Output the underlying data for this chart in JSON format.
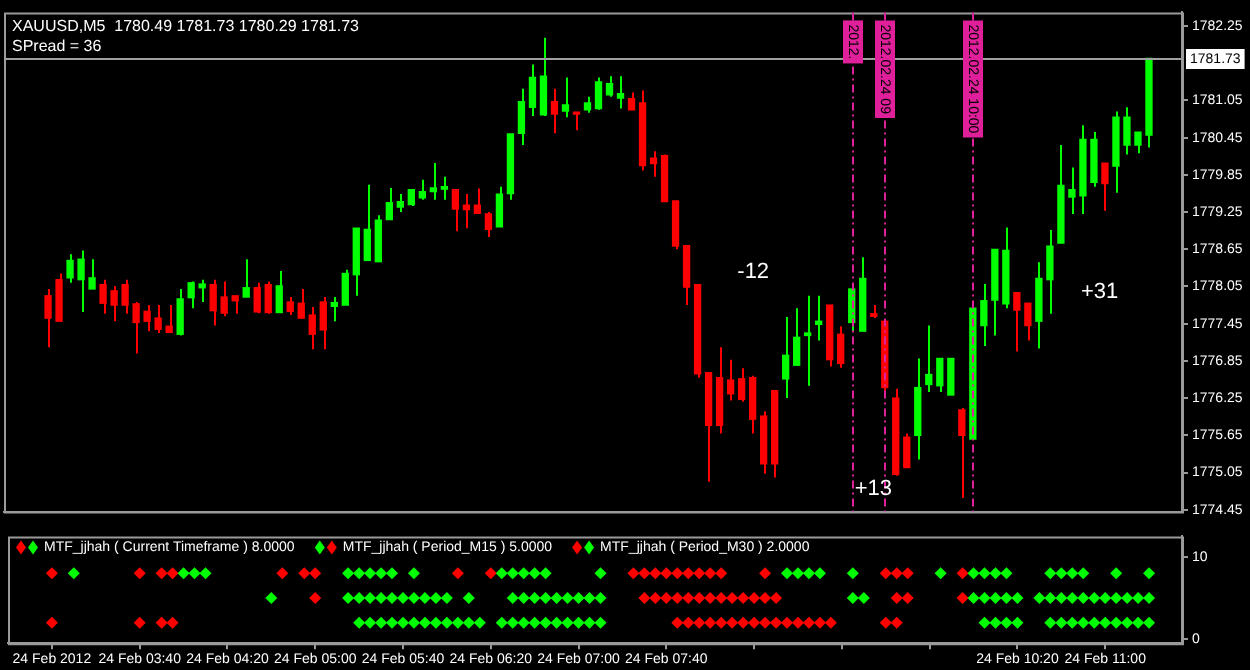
{
  "chart_data": [
    {
      "type": "candlestick",
      "title": "XAUUSD,M5  1780.49 1781.73 1780.29 1781.73",
      "subtitle": "SPread = 36",
      "x": [
        "2012-02-24T03:00",
        "2012-02-24T03:05",
        "2012-02-24T03:10",
        "2012-02-24T03:15",
        "2012-02-24T03:20",
        "2012-02-24T03:25",
        "2012-02-24T03:30",
        "2012-02-24T03:35",
        "2012-02-24T03:40",
        "2012-02-24T03:45",
        "2012-02-24T03:50",
        "2012-02-24T03:55",
        "2012-02-24T04:00",
        "2012-02-24T04:05",
        "2012-02-24T04:10",
        "2012-02-24T04:15",
        "2012-02-24T04:20",
        "2012-02-24T04:25",
        "2012-02-24T04:30",
        "2012-02-24T04:35",
        "2012-02-24T04:40",
        "2012-02-24T04:45",
        "2012-02-24T04:50",
        "2012-02-24T04:55",
        "2012-02-24T05:00",
        "2012-02-24T05:05",
        "2012-02-24T05:10",
        "2012-02-24T05:15",
        "2012-02-24T05:20",
        "2012-02-24T05:25",
        "2012-02-24T05:30",
        "2012-02-24T05:35",
        "2012-02-24T05:40",
        "2012-02-24T05:45",
        "2012-02-24T05:50",
        "2012-02-24T05:55",
        "2012-02-24T06:00",
        "2012-02-24T06:05",
        "2012-02-24T06:10",
        "2012-02-24T06:15",
        "2012-02-24T06:20",
        "2012-02-24T06:25",
        "2012-02-24T06:30",
        "2012-02-24T06:35",
        "2012-02-24T06:40",
        "2012-02-24T06:45",
        "2012-02-24T06:50",
        "2012-02-24T06:55",
        "2012-02-24T07:00",
        "2012-02-24T07:05",
        "2012-02-24T07:10",
        "2012-02-24T07:15",
        "2012-02-24T07:20",
        "2012-02-24T07:25",
        "2012-02-24T07:30",
        "2012-02-24T07:35",
        "2012-02-24T07:40",
        "2012-02-24T07:45",
        "2012-02-24T07:50",
        "2012-02-24T07:55",
        "2012-02-24T08:00",
        "2012-02-24T08:05",
        "2012-02-24T08:10",
        "2012-02-24T08:15",
        "2012-02-24T08:20",
        "2012-02-24T08:25",
        "2012-02-24T08:30",
        "2012-02-24T08:35",
        "2012-02-24T08:40",
        "2012-02-24T08:45",
        "2012-02-24T08:50",
        "2012-02-24T08:55",
        "2012-02-24T09:00",
        "2012-02-24T09:05",
        "2012-02-24T09:10",
        "2012-02-24T09:15",
        "2012-02-24T09:20",
        "2012-02-24T09:25",
        "2012-02-24T09:30",
        "2012-02-24T09:35",
        "2012-02-24T09:40",
        "2012-02-24T09:45",
        "2012-02-24T09:50",
        "2012-02-24T09:55",
        "2012-02-24T10:00",
        "2012-02-24T10:05",
        "2012-02-24T10:10",
        "2012-02-24T10:15",
        "2012-02-24T10:20",
        "2012-02-24T10:25",
        "2012-02-24T10:30",
        "2012-02-24T10:35",
        "2012-02-24T10:40",
        "2012-02-24T10:45",
        "2012-02-24T10:50",
        "2012-02-24T10:55",
        "2012-02-24T11:00",
        "2012-02-24T11:05",
        "2012-02-24T11:10",
        "2012-02-24T11:15",
        "2012-02-24T11:20"
      ],
      "ohlc": [
        [
          1777.9,
          1778.01,
          1777.07,
          1777.54
        ],
        [
          1778.16,
          1778.26,
          1777.49,
          1777.49
        ],
        [
          1778.19,
          1778.57,
          1778.11,
          1778.47
        ],
        [
          1778.16,
          1778.63,
          1777.64,
          1778.49
        ],
        [
          1778.01,
          1778.49,
          1778.01,
          1778.19
        ],
        [
          1778.08,
          1778.16,
          1777.61,
          1777.78
        ],
        [
          1777.98,
          1778.06,
          1777.49,
          1777.75
        ],
        [
          1778.08,
          1778.16,
          1777.61,
          1777.75
        ],
        [
          1777.77,
          1777.8,
          1776.97,
          1777.47
        ],
        [
          1777.65,
          1777.75,
          1777.33,
          1777.49
        ],
        [
          1777.54,
          1777.75,
          1777.3,
          1777.36
        ],
        [
          1777.41,
          1777.75,
          1777.31,
          1777.31
        ],
        [
          1777.28,
          1778.01,
          1777.26,
          1777.85
        ],
        [
          1777.87,
          1778.13,
          1777.7,
          1778.11
        ],
        [
          1778.03,
          1778.16,
          1777.8,
          1778.09
        ],
        [
          1778.08,
          1778.16,
          1777.42,
          1777.66
        ],
        [
          1777.88,
          1778.13,
          1777.57,
          1777.62
        ],
        [
          1777.9,
          1777.9,
          1777.61,
          1777.82
        ],
        [
          1777.88,
          1778.49,
          1777.88,
          1778.03
        ],
        [
          1778.03,
          1778.11,
          1777.62,
          1777.64
        ],
        [
          1778.08,
          1778.13,
          1777.61,
          1777.63
        ],
        [
          1777.63,
          1778.3,
          1777.63,
          1778.06
        ],
        [
          1777.8,
          1777.88,
          1777.59,
          1777.65
        ],
        [
          1777.78,
          1778.01,
          1777.54,
          1777.54
        ],
        [
          1777.59,
          1777.72,
          1777.04,
          1777.28
        ],
        [
          1777.8,
          1777.88,
          1777.04,
          1777.35
        ],
        [
          1777.73,
          1777.88,
          1777.49,
          1777.79
        ],
        [
          1777.75,
          1778.32,
          1777.75,
          1778.26
        ],
        [
          1778.24,
          1778.99,
          1777.9,
          1778.99
        ],
        [
          1778.47,
          1779.69,
          1778.47,
          1778.97
        ],
        [
          1778.45,
          1779.2,
          1778.45,
          1779.12
        ],
        [
          1779.13,
          1779.64,
          1779.13,
          1779.4
        ],
        [
          1779.33,
          1779.54,
          1779.25,
          1779.42
        ],
        [
          1779.37,
          1779.61,
          1779.35,
          1779.61
        ],
        [
          1779.48,
          1779.77,
          1779.45,
          1779.58
        ],
        [
          1779.58,
          1780.04,
          1779.45,
          1779.64
        ],
        [
          1779.62,
          1779.82,
          1779.45,
          1779.66
        ],
        [
          1779.61,
          1779.61,
          1778.94,
          1779.3
        ],
        [
          1779.36,
          1779.54,
          1778.99,
          1779.29
        ],
        [
          1779.36,
          1779.63,
          1779.23,
          1779.23
        ],
        [
          1779.22,
          1779.25,
          1778.85,
          1778.97
        ],
        [
          1779.01,
          1779.66,
          1779.01,
          1779.54
        ],
        [
          1779.55,
          1780.51,
          1779.45,
          1780.51
        ],
        [
          1780.52,
          1781.24,
          1780.33,
          1781.03
        ],
        [
          1780.94,
          1781.63,
          1780.8,
          1781.42
        ],
        [
          1780.82,
          1782.06,
          1780.8,
          1781.44
        ],
        [
          1781.03,
          1781.24,
          1780.52,
          1780.83
        ],
        [
          1780.88,
          1781.42,
          1780.78,
          1780.98
        ],
        [
          1780.85,
          1780.85,
          1780.57,
          1780.83
        ],
        [
          1780.9,
          1781.11,
          1780.85,
          1781.01
        ],
        [
          1780.92,
          1781.42,
          1780.9,
          1781.35
        ],
        [
          1781.14,
          1781.44,
          1781.11,
          1781.32
        ],
        [
          1781.09,
          1781.44,
          1780.92,
          1781.16
        ],
        [
          1781.08,
          1781.18,
          1780.9,
          1780.9
        ],
        [
          1781.01,
          1781.21,
          1779.92,
          1780.0
        ],
        [
          1780.12,
          1780.23,
          1779.82,
          1780.03
        ],
        [
          1780.16,
          1780.18,
          1779.42,
          1779.42
        ],
        [
          1779.43,
          1779.43,
          1778.65,
          1778.7
        ],
        [
          1778.71,
          1778.71,
          1777.75,
          1778.04
        ],
        [
          1778.08,
          1778.08,
          1776.58,
          1776.64
        ],
        [
          1776.66,
          1776.66,
          1774.9,
          1775.81
        ],
        [
          1776.58,
          1777.07,
          1775.68,
          1775.81
        ],
        [
          1776.54,
          1776.87,
          1776.21,
          1776.32
        ],
        [
          1776.56,
          1776.73,
          1776.19,
          1776.23
        ],
        [
          1776.58,
          1776.61,
          1775.68,
          1775.91
        ],
        [
          1775.96,
          1776.04,
          1775.03,
          1775.19
        ],
        [
          1776.37,
          1776.37,
          1774.97,
          1775.19
        ],
        [
          1776.56,
          1777.56,
          1776.25,
          1776.94
        ],
        [
          1776.78,
          1777.7,
          1776.78,
          1777.23
        ],
        [
          1777.26,
          1777.9,
          1776.45,
          1777.3
        ],
        [
          1777.44,
          1777.9,
          1777.18,
          1777.49
        ],
        [
          1777.75,
          1777.75,
          1776.76,
          1776.87
        ],
        [
          1777.28,
          1777.41,
          1776.74,
          1776.81
        ],
        [
          1777.47,
          1778.01,
          1777.33,
          1778.01
        ],
        [
          1777.33,
          1778.52,
          1777.33,
          1778.18
        ],
        [
          1777.61,
          1777.75,
          1777.54,
          1777.57
        ],
        [
          1777.49,
          1777.49,
          1776.35,
          1776.42
        ],
        [
          1776.25,
          1776.4,
          1775.0,
          1775.02
        ],
        [
          1775.62,
          1775.68,
          1775.13,
          1775.13
        ],
        [
          1775.65,
          1776.89,
          1775.26,
          1776.42
        ],
        [
          1776.47,
          1777.42,
          1776.35,
          1776.63
        ],
        [
          1776.45,
          1776.89,
          1776.35,
          1776.89
        ],
        [
          1776.3,
          1776.89,
          1776.3,
          1776.89
        ],
        [
          1776.06,
          1776.09,
          1774.64,
          1775.65
        ],
        [
          1775.59,
          1777.8,
          1775.59,
          1777.7
        ],
        [
          1777.42,
          1778.09,
          1777.09,
          1777.82
        ],
        [
          1777.83,
          1778.65,
          1777.26,
          1778.65
        ],
        [
          1777.77,
          1779.0,
          1777.7,
          1778.63
        ],
        [
          1777.95,
          1777.95,
          1777.0,
          1777.67
        ],
        [
          1777.78,
          1777.78,
          1777.18,
          1777.42
        ],
        [
          1777.49,
          1778.44,
          1777.05,
          1778.18
        ],
        [
          1778.16,
          1778.96,
          1777.61,
          1778.7
        ],
        [
          1778.75,
          1780.33,
          1778.75,
          1779.68
        ],
        [
          1779.49,
          1779.97,
          1779.22,
          1779.61
        ],
        [
          1779.51,
          1780.65,
          1779.22,
          1780.42
        ],
        [
          1779.73,
          1780.54,
          1779.66,
          1780.42
        ],
        [
          1780.04,
          1780.04,
          1779.27,
          1779.71
        ],
        [
          1779.99,
          1780.87,
          1779.56,
          1780.78
        ],
        [
          1780.33,
          1780.94,
          1780.18,
          1780.78
        ],
        [
          1780.33,
          1780.54,
          1780.2,
          1780.54
        ],
        [
          1780.49,
          1781.73,
          1780.29,
          1781.73
        ]
      ],
      "colors": [
        "#ff0000",
        "#ff0000",
        "#00ff00",
        "#00ff00",
        "#00ff00",
        "#ff0000",
        "#ff0000",
        "#ff0000",
        "#ff0000",
        "#ff0000",
        "#ff0000",
        "#ff0000",
        "#00ff00",
        "#00ff00",
        "#00ff00",
        "#ff0000",
        "#ff0000",
        "#ff0000",
        "#00ff00",
        "#ff0000",
        "#ff0000",
        "#00ff00",
        "#ff0000",
        "#ff0000",
        "#ff0000",
        "#ff0000",
        "#00ff00",
        "#00ff00",
        "#00ff00",
        "#00ff00",
        "#00ff00",
        "#00ff00",
        "#00ff00",
        "#00ff00",
        "#00ff00",
        "#00ff00",
        "#00ff00",
        "#ff0000",
        "#ff0000",
        "#ff0000",
        "#ff0000",
        "#00ff00",
        "#00ff00",
        "#00ff00",
        "#00ff00",
        "#00ff00",
        "#ff0000",
        "#00ff00",
        "#ff0000",
        "#00ff00",
        "#00ff00",
        "#00ff00",
        "#00ff00",
        "#ff0000",
        "#ff0000",
        "#ff0000",
        "#ff0000",
        "#ff0000",
        "#ff0000",
        "#ff0000",
        "#ff0000",
        "#ff0000",
        "#ff0000",
        "#ff0000",
        "#ff0000",
        "#ff0000",
        "#ff0000",
        "#00ff00",
        "#00ff00",
        "#00ff00",
        "#00ff00",
        "#ff0000",
        "#ff0000",
        "#00ff00",
        "#00ff00",
        "#ff0000",
        "#ff0000",
        "#ff0000",
        "#ff0000",
        "#00ff00",
        "#00ff00",
        "#00ff00",
        "#00ff00",
        "#ff0000",
        "#00ff00",
        "#00ff00",
        "#00ff00",
        "#00ff00",
        "#ff0000",
        "#ff0000",
        "#00ff00",
        "#00ff00",
        "#00ff00",
        "#00ff00",
        "#00ff00",
        "#00ff00",
        "#ff0000",
        "#00ff00",
        "#00ff00",
        "#00ff00",
        "#00ff00"
      ],
      "xlim": [
        "2012-02-24T02:40",
        "2012-02-24T11:35"
      ],
      "ylim": [
        1774.42,
        1782.47
      ],
      "yticks": [
        1774.45,
        1775.05,
        1775.65,
        1776.25,
        1776.85,
        1777.45,
        1778.05,
        1778.65,
        1779.25,
        1779.85,
        1780.45,
        1781.05,
        1782.25
      ],
      "tick_labels": "y",
      "ref_lines": [
        {
          "axis": "y",
          "value": 1781.73,
          "label": "1781.73",
          "color": "#a0a0a0",
          "line_style": "solid"
        },
        {
          "axis": "x",
          "value": "2012-02-24T09:05",
          "label": "2012.",
          "color": "#e0209a",
          "line_style": "dashed"
        },
        {
          "axis": "x",
          "value": "2012-02-24T09:20",
          "label": "2012.02.24 09",
          "color": "#e0209a",
          "line_style": "dashed"
        },
        {
          "axis": "x",
          "value": "2012-02-24T10:00",
          "label": "2012.02.24 10:00",
          "color": "#e0209a",
          "line_style": "dashed"
        }
      ],
      "annotations": [
        "-12",
        "+13",
        "+31"
      ]
    },
    {
      "type": "scatter",
      "marker": "diamond",
      "legend": "top left",
      "x": [
        "2012-02-24T03:00",
        "2012-02-24T03:05",
        "2012-02-24T03:10",
        "2012-02-24T03:15",
        "2012-02-24T03:20",
        "2012-02-24T03:25",
        "2012-02-24T03:30",
        "2012-02-24T03:35",
        "2012-02-24T03:40",
        "2012-02-24T03:45",
        "2012-02-24T03:50",
        "2012-02-24T03:55",
        "2012-02-24T04:00",
        "2012-02-24T04:05",
        "2012-02-24T04:10",
        "2012-02-24T04:15",
        "2012-02-24T04:20",
        "2012-02-24T04:25",
        "2012-02-24T04:30",
        "2012-02-24T04:35",
        "2012-02-24T04:40",
        "2012-02-24T04:45",
        "2012-02-24T04:50",
        "2012-02-24T04:55",
        "2012-02-24T05:00",
        "2012-02-24T05:05",
        "2012-02-24T05:10",
        "2012-02-24T05:15",
        "2012-02-24T05:20",
        "2012-02-24T05:25",
        "2012-02-24T05:30",
        "2012-02-24T05:35",
        "2012-02-24T05:40",
        "2012-02-24T05:45",
        "2012-02-24T05:50",
        "2012-02-24T05:55",
        "2012-02-24T06:00",
        "2012-02-24T06:05",
        "2012-02-24T06:10",
        "2012-02-24T06:15",
        "2012-02-24T06:20",
        "2012-02-24T06:25",
        "2012-02-24T06:30",
        "2012-02-24T06:35",
        "2012-02-24T06:40",
        "2012-02-24T06:45",
        "2012-02-24T06:50",
        "2012-02-24T06:55",
        "2012-02-24T07:00",
        "2012-02-24T07:05",
        "2012-02-24T07:10",
        "2012-02-24T07:15",
        "2012-02-24T07:20",
        "2012-02-24T07:25",
        "2012-02-24T07:30",
        "2012-02-24T07:35",
        "2012-02-24T07:40",
        "2012-02-24T07:45",
        "2012-02-24T07:50",
        "2012-02-24T07:55",
        "2012-02-24T08:00",
        "2012-02-24T08:05",
        "2012-02-24T08:10",
        "2012-02-24T08:15",
        "2012-02-24T08:20",
        "2012-02-24T08:25",
        "2012-02-24T08:30",
        "2012-02-24T08:35",
        "2012-02-24T08:40",
        "2012-02-24T08:45",
        "2012-02-24T08:50",
        "2012-02-24T08:55",
        "2012-02-24T09:00",
        "2012-02-24T09:05",
        "2012-02-24T09:10",
        "2012-02-24T09:15",
        "2012-02-24T09:20",
        "2012-02-24T09:25",
        "2012-02-24T09:30",
        "2012-02-24T09:35",
        "2012-02-24T09:40",
        "2012-02-24T09:45",
        "2012-02-24T09:50",
        "2012-02-24T09:55",
        "2012-02-24T10:00",
        "2012-02-24T10:05",
        "2012-02-24T10:10",
        "2012-02-24T10:15",
        "2012-02-24T10:20",
        "2012-02-24T10:25",
        "2012-02-24T10:30",
        "2012-02-24T10:35",
        "2012-02-24T10:40",
        "2012-02-24T10:45",
        "2012-02-24T10:50",
        "2012-02-24T10:55",
        "2012-02-24T11:00",
        "2012-02-24T11:05",
        "2012-02-24T11:10",
        "2012-02-24T11:15",
        "2012-02-24T11:20"
      ],
      "series": [
        {
          "name": "MTF_jjhah ( Current Timeframe ) 8.0000",
          "values": [
            8,
            null,
            8,
            null,
            null,
            null,
            null,
            null,
            8,
            null,
            8,
            8,
            8,
            8,
            8,
            null,
            null,
            null,
            null,
            null,
            null,
            8,
            null,
            8,
            8,
            null,
            null,
            8,
            8,
            8,
            8,
            8,
            null,
            8,
            null,
            null,
            null,
            8,
            null,
            null,
            8,
            8,
            8,
            8,
            8,
            8,
            null,
            null,
            null,
            null,
            8,
            null,
            null,
            8,
            8,
            8,
            8,
            8,
            8,
            8,
            8,
            8,
            null,
            null,
            null,
            8,
            null,
            8,
            8,
            8,
            8,
            null,
            null,
            8,
            null,
            null,
            8,
            8,
            8,
            null,
            null,
            8,
            null,
            8,
            8,
            8,
            8,
            8,
            null,
            null,
            null,
            8,
            8,
            8,
            8,
            null,
            null,
            8,
            null,
            null,
            8
          ],
          "colors": [
            "#ff0000",
            null,
            "#00ff00",
            null,
            null,
            null,
            null,
            null,
            "#ff0000",
            null,
            "#ff0000",
            "#ff0000",
            "#00ff00",
            "#00ff00",
            "#00ff00",
            null,
            null,
            null,
            null,
            null,
            null,
            "#ff0000",
            null,
            "#ff0000",
            "#ff0000",
            null,
            null,
            "#00ff00",
            "#00ff00",
            "#00ff00",
            "#00ff00",
            "#00ff00",
            null,
            "#00ff00",
            null,
            null,
            null,
            "#ff0000",
            null,
            null,
            "#ff0000",
            "#00ff00",
            "#00ff00",
            "#00ff00",
            "#00ff00",
            "#00ff00",
            null,
            null,
            null,
            null,
            "#00ff00",
            null,
            null,
            "#ff0000",
            "#ff0000",
            "#ff0000",
            "#ff0000",
            "#ff0000",
            "#ff0000",
            "#ff0000",
            "#ff0000",
            "#ff0000",
            null,
            null,
            null,
            "#ff0000",
            null,
            "#00ff00",
            "#00ff00",
            "#00ff00",
            "#00ff00",
            null,
            null,
            "#00ff00",
            null,
            null,
            "#ff0000",
            "#ff0000",
            "#ff0000",
            null,
            null,
            "#00ff00",
            null,
            "#ff0000",
            "#00ff00",
            "#00ff00",
            "#00ff00",
            "#00ff00",
            null,
            null,
            null,
            "#00ff00",
            "#00ff00",
            "#00ff00",
            "#00ff00",
            null,
            null,
            "#00ff00",
            null,
            null,
            "#00ff00"
          ]
        },
        {
          "name": "MTF_jjhah ( Period_M15 ) 5.0000",
          "values": [
            null,
            null,
            null,
            null,
            null,
            null,
            null,
            null,
            null,
            null,
            null,
            null,
            null,
            null,
            null,
            null,
            null,
            null,
            null,
            null,
            5,
            null,
            null,
            null,
            5,
            null,
            null,
            5,
            5,
            5,
            5,
            5,
            5,
            5,
            5,
            5,
            5,
            null,
            5,
            null,
            null,
            null,
            5,
            5,
            5,
            5,
            5,
            5,
            5,
            5,
            5,
            null,
            null,
            null,
            5,
            5,
            5,
            5,
            5,
            5,
            5,
            5,
            5,
            5,
            5,
            5,
            5,
            null,
            null,
            null,
            null,
            null,
            null,
            5,
            5,
            null,
            null,
            5,
            5,
            null,
            null,
            null,
            null,
            5,
            5,
            5,
            5,
            5,
            5,
            null,
            5,
            5,
            5,
            5,
            5,
            5,
            5,
            5,
            5,
            5,
            5
          ],
          "colors": [
            null,
            null,
            null,
            null,
            null,
            null,
            null,
            null,
            null,
            null,
            null,
            null,
            null,
            null,
            null,
            null,
            null,
            null,
            null,
            null,
            "#00ff00",
            null,
            null,
            null,
            "#ff0000",
            null,
            null,
            "#00ff00",
            "#00ff00",
            "#00ff00",
            "#00ff00",
            "#00ff00",
            "#00ff00",
            "#00ff00",
            "#00ff00",
            "#00ff00",
            "#00ff00",
            null,
            "#00ff00",
            null,
            null,
            null,
            "#00ff00",
            "#00ff00",
            "#00ff00",
            "#00ff00",
            "#00ff00",
            "#00ff00",
            "#00ff00",
            "#00ff00",
            "#00ff00",
            null,
            null,
            null,
            "#ff0000",
            "#ff0000",
            "#ff0000",
            "#ff0000",
            "#ff0000",
            "#ff0000",
            "#ff0000",
            "#ff0000",
            "#ff0000",
            "#ff0000",
            "#ff0000",
            "#ff0000",
            "#ff0000",
            null,
            null,
            null,
            null,
            null,
            null,
            "#00ff00",
            "#00ff00",
            null,
            null,
            "#ff0000",
            "#ff0000",
            null,
            null,
            null,
            null,
            "#ff0000",
            "#00ff00",
            "#00ff00",
            "#00ff00",
            "#00ff00",
            "#00ff00",
            null,
            "#00ff00",
            "#00ff00",
            "#00ff00",
            "#00ff00",
            "#00ff00",
            "#00ff00",
            "#00ff00",
            "#00ff00",
            "#00ff00",
            "#00ff00",
            "#00ff00"
          ]
        },
        {
          "name": "MTF_jjhah ( Period_M30 ) 2.0000",
          "values": [
            2,
            null,
            null,
            null,
            null,
            null,
            null,
            null,
            2,
            null,
            2,
            2,
            null,
            null,
            null,
            null,
            null,
            null,
            null,
            null,
            null,
            null,
            null,
            null,
            null,
            null,
            null,
            null,
            2,
            2,
            2,
            2,
            2,
            2,
            2,
            2,
            2,
            2,
            2,
            2,
            null,
            2,
            2,
            2,
            2,
            2,
            2,
            2,
            2,
            2,
            2,
            null,
            null,
            null,
            null,
            null,
            null,
            2,
            2,
            2,
            2,
            2,
            2,
            2,
            2,
            2,
            2,
            2,
            2,
            2,
            2,
            2,
            null,
            null,
            null,
            null,
            2,
            2,
            null,
            null,
            null,
            null,
            null,
            null,
            null,
            2,
            2,
            2,
            2,
            null,
            null,
            2,
            2,
            2,
            2,
            2,
            2,
            2,
            2,
            2,
            2
          ],
          "colors": [
            "#ff0000",
            null,
            null,
            null,
            null,
            null,
            null,
            null,
            "#ff0000",
            null,
            "#ff0000",
            "#ff0000",
            null,
            null,
            null,
            null,
            null,
            null,
            null,
            null,
            null,
            null,
            null,
            null,
            null,
            null,
            null,
            null,
            "#00ff00",
            "#00ff00",
            "#00ff00",
            "#00ff00",
            "#00ff00",
            "#00ff00",
            "#00ff00",
            "#00ff00",
            "#00ff00",
            "#00ff00",
            "#00ff00",
            "#00ff00",
            null,
            "#00ff00",
            "#00ff00",
            "#00ff00",
            "#00ff00",
            "#00ff00",
            "#00ff00",
            "#00ff00",
            "#00ff00",
            "#00ff00",
            "#00ff00",
            null,
            null,
            null,
            null,
            null,
            null,
            "#ff0000",
            "#ff0000",
            "#ff0000",
            "#ff0000",
            "#ff0000",
            "#ff0000",
            "#ff0000",
            "#ff0000",
            "#ff0000",
            "#ff0000",
            "#ff0000",
            "#ff0000",
            "#ff0000",
            "#ff0000",
            "#ff0000",
            null,
            null,
            null,
            null,
            "#ff0000",
            "#ff0000",
            null,
            null,
            null,
            null,
            null,
            null,
            null,
            "#00ff00",
            "#00ff00",
            "#00ff00",
            "#00ff00",
            null,
            null,
            "#00ff00",
            "#00ff00",
            "#00ff00",
            "#00ff00",
            "#00ff00",
            "#00ff00",
            "#00ff00",
            "#00ff00",
            "#00ff00",
            "#00ff00"
          ]
        }
      ],
      "xlim": [
        "2012-02-24T02:40",
        "2012-02-24T11:35"
      ],
      "xticks": [
        {
          "value": "2012-02-24T03:00",
          "label": "24 Feb 2012"
        },
        {
          "value": "2012-02-24T03:40",
          "label": "24 Feb 03:40"
        },
        {
          "value": "2012-02-24T04:20",
          "label": "24 Feb 04:20"
        },
        {
          "value": "2012-02-24T05:00",
          "label": "24 Feb 05:00"
        },
        {
          "value": "2012-02-24T05:40",
          "label": "24 Feb 05:40"
        },
        {
          "value": "2012-02-24T06:20",
          "label": "24 Feb 06:20"
        },
        {
          "value": "2012-02-24T07:00",
          "label": "24 Feb 07:00"
        },
        {
          "value": "2012-02-24T07:40",
          "label": "24 Feb 07:40"
        },
        {
          "value": "2012-02-24T08:20",
          "label": null
        },
        {
          "value": "2012-02-24T09:00",
          "label": null
        },
        {
          "value": "2012-02-24T09:40",
          "label": null
        },
        {
          "value": "2012-02-24T10:20",
          "label": "24 Feb 10:20"
        },
        {
          "value": "2012-02-24T11:00",
          "label": "24 Feb 11:00"
        }
      ],
      "ylim": [
        -0.5,
        12.5
      ],
      "yticks": [
        0,
        10
      ]
    }
  ]
}
